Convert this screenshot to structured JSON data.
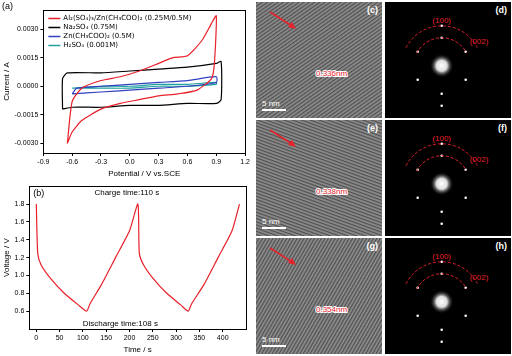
{
  "chart_data": [
    {
      "type": "line",
      "panel": "(a)",
      "x_label": "Potential / V vs.SCE",
      "y_label": "Current / A",
      "xlim": [
        -0.9,
        1.2
      ],
      "xticks": [
        -0.9,
        -0.6,
        -0.3,
        {
          "value": 0,
          "label": "0.0"
        },
        0.3,
        0.6,
        0.9,
        1.2
      ],
      "ylim": [
        -0.0035,
        0.004
      ],
      "yticks": [
        {
          "value": -0.003,
          "label": "-0.0030"
        },
        {
          "value": -0.0015,
          "label": "-0.0015"
        },
        {
          "value": 0,
          "label": "0.0000"
        },
        {
          "value": 0.0015,
          "label": "0.0015"
        },
        {
          "value": 0.003,
          "label": "0.0030"
        }
      ],
      "grid": false,
      "legend": "top-left",
      "series": [
        {
          "name": "Al₂(SO₄)₃/Zn(CH₃COO)₂ (0.25M/0.5M)",
          "color": "#e8202a",
          "x": [
            -0.65,
            -0.6,
            -0.5,
            -0.3,
            -0.1,
            0.1,
            0.3,
            0.45,
            0.6,
            0.75,
            0.85,
            0.9,
            0.88,
            0.85,
            0.7,
            0.5,
            0.3,
            0.1,
            -0.1,
            -0.3,
            -0.5,
            -0.6,
            -0.65
          ],
          "values": [
            -0.003,
            -0.0008,
            -0.0001,
            0.0003,
            0.0005,
            0.0008,
            0.0012,
            0.0015,
            0.0016,
            0.0024,
            0.0033,
            0.0037,
            0.0012,
            0.0004,
            -0.0002,
            -0.0004,
            -0.0005,
            -0.0007,
            -0.0009,
            -0.0012,
            -0.0018,
            -0.0024,
            -0.003
          ]
        },
        {
          "name": "Na₂SO₄ (0.75M)",
          "color": "#000000",
          "x": [
            -0.7,
            -0.7,
            -0.65,
            -0.3,
            0,
            0.3,
            0.6,
            0.9,
            0.95,
            0.95,
            0.9,
            0.6,
            0.3,
            0,
            -0.3,
            -0.6,
            -0.7
          ],
          "values": [
            -0.0012,
            0.0004,
            0.0007,
            0.0007,
            0.0008,
            0.0009,
            0.001,
            0.0012,
            0.0013,
            -0.0007,
            -0.0009,
            -0.0009,
            -0.001,
            -0.001,
            -0.0011,
            -0.0011,
            -0.0012
          ]
        },
        {
          "name": "Zn(CH₃COO)₂ (0.5M)",
          "color": "#3040c0",
          "x": [
            -0.6,
            -0.55,
            -0.3,
            0,
            0.3,
            0.6,
            0.9,
            0.9,
            0.6,
            0.3,
            0,
            -0.3,
            -0.6
          ],
          "values": [
            -0.0004,
            -0.0001,
            0,
            0.0001,
            0.0002,
            0.0003,
            0.0005,
            0.0002,
            0,
            -0.0001,
            -0.0002,
            -0.0003,
            -0.0004
          ]
        },
        {
          "name": "H₂SO₄ (0.001M)",
          "color": "#20a0a0",
          "x": [
            -0.6,
            -0.3,
            0,
            0.3,
            0.6,
            0.9,
            0.9,
            0.6,
            0.3,
            0,
            -0.3,
            -0.6
          ],
          "values": [
            -0.0001,
            0,
            0,
            0.0001,
            0.0001,
            0.0002,
            0.0001,
            0,
            0,
            -0.0001,
            -0.0001,
            -0.0001
          ]
        }
      ]
    },
    {
      "type": "line",
      "panel": "(b)",
      "x_label": "Time / s",
      "y_label": "Voltage / V",
      "xlim": [
        -15,
        450
      ],
      "xticks": [
        0,
        50,
        100,
        150,
        200,
        250,
        300,
        350,
        400
      ],
      "ylim": [
        0.4,
        2.0
      ],
      "yticks": [
        0.6,
        0.8,
        {
          "value": 1,
          "label": "1.0"
        },
        1.2,
        1.4,
        1.6,
        1.8
      ],
      "grid": false,
      "annotations": [
        "Charge time:110 s",
        "Discharge time:108 s"
      ],
      "series": [
        {
          "color": "#e8202a",
          "x": [
            0,
            3,
            10,
            30,
            60,
            90,
            108,
            115,
            140,
            170,
            200,
            218,
            221,
            230,
            250,
            280,
            310,
            326,
            333,
            360,
            390,
            420,
            436
          ],
          "values": [
            1.8,
            1.25,
            1.12,
            0.97,
            0.8,
            0.67,
            0.6,
            0.68,
            0.9,
            1.2,
            1.5,
            1.8,
            1.25,
            1.12,
            0.97,
            0.8,
            0.67,
            0.6,
            0.68,
            0.9,
            1.2,
            1.5,
            1.8
          ]
        }
      ]
    }
  ],
  "images": [
    {
      "panel": "(c)",
      "scale_bar": "5 nm",
      "spacing": "0.336nm"
    },
    {
      "panel": "(d)",
      "rings": [
        "(100)",
        "(002)"
      ]
    },
    {
      "panel": "(e)",
      "scale_bar": "5 nm",
      "spacing": "0.338nm"
    },
    {
      "panel": "(f)",
      "rings": [
        "(100)",
        "(002)"
      ]
    },
    {
      "panel": "(g)",
      "scale_bar": "5 nm",
      "spacing": "0.354nm"
    },
    {
      "panel": "(h)",
      "rings": [
        "(100)",
        "(002)"
      ]
    }
  ]
}
